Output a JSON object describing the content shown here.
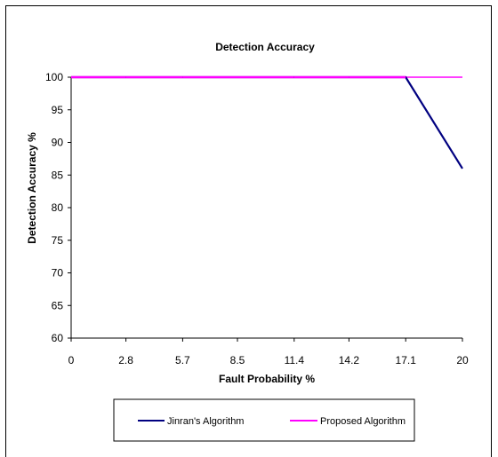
{
  "chart_data": {
    "type": "line",
    "title": "Detection Accuracy",
    "xlabel": "Fault Probability %",
    "ylabel": "Detection Accuracy  %",
    "categories": [
      "0",
      "2.8",
      "5.7",
      "8.5",
      "11.4",
      "14.2",
      "17.1",
      "20"
    ],
    "x": [
      0,
      2.8,
      5.7,
      8.5,
      11.4,
      14.2,
      17.1,
      20
    ],
    "ylim": [
      60,
      100
    ],
    "yticks": [
      "60",
      "65",
      "70",
      "75",
      "80",
      "85",
      "90",
      "95",
      "100"
    ],
    "grid": false,
    "legend_position": "bottom",
    "series": [
      {
        "name": "Jinran's Algorithm",
        "color": "#000080",
        "values": [
          100,
          100,
          100,
          100,
          100,
          100,
          100,
          86
        ]
      },
      {
        "name": "Proposed Algorithm",
        "color": "#ff00ff",
        "values": [
          100,
          100,
          100,
          100,
          100,
          100,
          100,
          100
        ]
      }
    ]
  }
}
